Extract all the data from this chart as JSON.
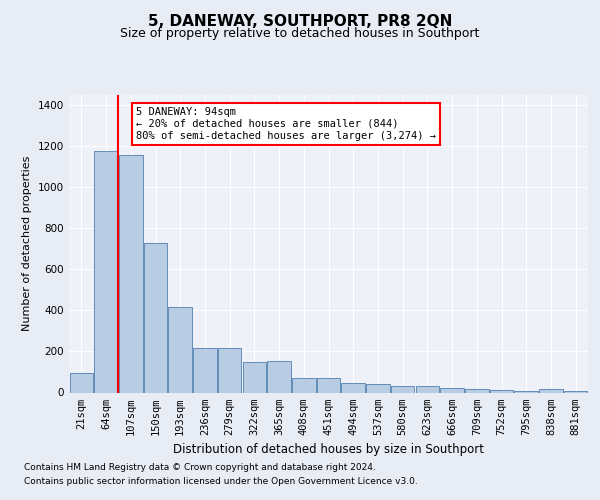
{
  "title": "5, DANEWAY, SOUTHPORT, PR8 2QN",
  "subtitle": "Size of property relative to detached houses in Southport",
  "xlabel": "Distribution of detached houses by size in Southport",
  "ylabel": "Number of detached properties",
  "categories": [
    "21sqm",
    "64sqm",
    "107sqm",
    "150sqm",
    "193sqm",
    "236sqm",
    "279sqm",
    "322sqm",
    "365sqm",
    "408sqm",
    "451sqm",
    "494sqm",
    "537sqm",
    "580sqm",
    "623sqm",
    "666sqm",
    "709sqm",
    "752sqm",
    "795sqm",
    "838sqm",
    "881sqm"
  ],
  "values": [
    95,
    1175,
    1160,
    730,
    415,
    215,
    215,
    150,
    155,
    70,
    70,
    45,
    40,
    30,
    30,
    20,
    15,
    10,
    5,
    15,
    5
  ],
  "bar_color": "#b8cce4",
  "bar_edge_color": "#5080b0",
  "red_line_x": 1.5,
  "annotation_text": "5 DANEWAY: 94sqm\n← 20% of detached houses are smaller (844)\n80% of semi-detached houses are larger (3,274) →",
  "footnote1": "Contains HM Land Registry data © Crown copyright and database right 2024.",
  "footnote2": "Contains public sector information licensed under the Open Government Licence v3.0.",
  "ylim": [
    0,
    1450
  ],
  "yticks": [
    0,
    200,
    400,
    600,
    800,
    1000,
    1200,
    1400
  ],
  "bg_color": "#e8ecf4",
  "plot_bg_color": "#eef1f8",
  "grid_color": "#ffffff",
  "title_fontsize": 11,
  "subtitle_fontsize": 9,
  "ylabel_fontsize": 8,
  "xlabel_fontsize": 8.5,
  "tick_fontsize": 7.5,
  "footnote_fontsize": 6.5,
  "annot_fontsize": 7.5
}
